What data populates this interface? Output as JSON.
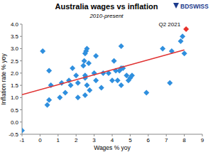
{
  "chart_data": {
    "type": "scatter",
    "title": "Australia wages vs inflation",
    "subtitle": "2010-present",
    "x_label": "Wages % yoy",
    "y_label": "Inflation rate % yoy",
    "source": "BDSWISS",
    "annotations": [
      "Q2 2021"
    ],
    "grid": false,
    "xlim": [
      -1,
      9
    ],
    "xticks": [
      -1,
      0,
      1,
      2,
      3,
      4,
      5,
      6,
      7,
      8,
      9
    ],
    "ylim": [
      -0.5,
      4
    ],
    "yticks": [
      -0.5,
      {
        "value": 0,
        "label": "0.0"
      },
      0.5,
      {
        "value": 1,
        "label": "1.0"
      },
      1.5,
      {
        "value": 2,
        "label": "2.0"
      },
      2.5,
      {
        "value": 3,
        "label": "3.0"
      },
      3.5,
      {
        "value": 4,
        "label": "4.0"
      }
    ],
    "series": [
      {
        "type": "scatter",
        "color": "#2f8fde",
        "marker": "diamond",
        "x": [
          -1.0,
          0.15,
          0.5,
          0.6,
          0.5,
          0.4,
          1.1,
          1.2,
          1.4,
          1.6,
          1.7,
          1.8,
          2.0,
          2.1,
          2.1,
          2.4,
          2.45,
          2.5,
          2.55,
          2.6,
          2.5,
          2.5,
          2.6,
          2.5,
          2.7,
          2.75,
          3.0,
          3.1,
          3.4,
          3.1,
          3.5,
          3.8,
          4.0,
          4.1,
          4.2,
          4.3,
          4.4,
          4.5,
          4.5,
          4.5,
          4.6,
          4.8,
          4.9,
          5.0,
          5.1,
          5.9,
          6.8,
          7.2,
          7.3,
          7.8,
          7.9,
          8.0
        ],
        "values": [
          -0.35,
          2.9,
          2.1,
          1.5,
          0.9,
          0.7,
          1.0,
          1.6,
          1.2,
          1.7,
          1.5,
          2.2,
          1.9,
          1.6,
          1.0,
          2.3,
          2.5,
          2.8,
          2.9,
          3.0,
          1.9,
          1.8,
          1.5,
          1.1,
          2.4,
          1.3,
          2.0,
          1.7,
          1.4,
          2.7,
          2.0,
          2.0,
          1.7,
          2.5,
          2.1,
          1.7,
          2.1,
          1.5,
          2.2,
          3.1,
          2.2,
          1.9,
          1.7,
          1.8,
          1.9,
          1.2,
          3.0,
          1.6,
          2.9,
          3.3,
          3.5,
          2.8
        ]
      },
      {
        "type": "line",
        "color": "#e03232",
        "line_style": "solid",
        "x": [
          -1,
          8
        ],
        "values": [
          1.12,
          2.95
        ]
      },
      {
        "type": "scatter",
        "color": "#e8302a",
        "marker": "diamond",
        "x": [
          8.1
        ],
        "values": [
          3.8
        ]
      }
    ]
  }
}
